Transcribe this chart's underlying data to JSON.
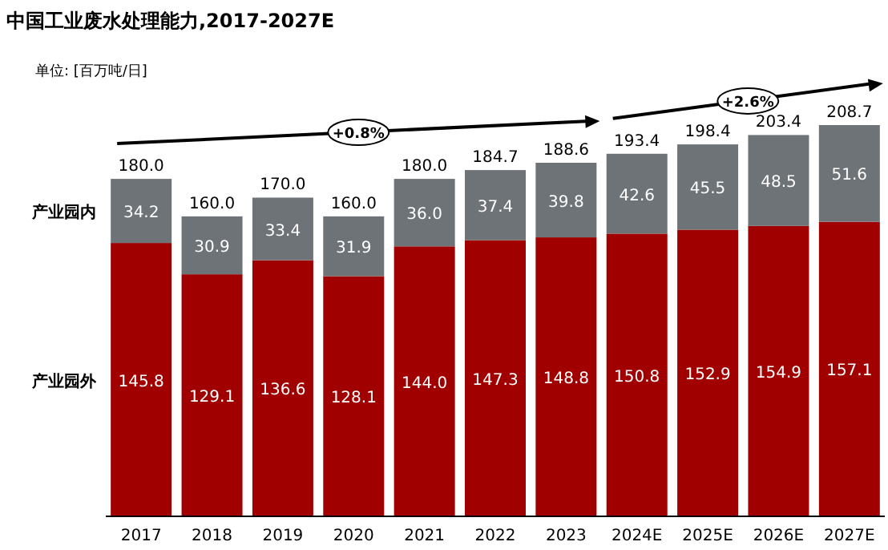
{
  "chart_data": {
    "type": "bar",
    "title": "中国工业废水处理能力,2017-2027E",
    "stacked": true,
    "categories": [
      "2017",
      "2018",
      "2019",
      "2020",
      "2021",
      "2022",
      "2023",
      "2024E",
      "2025E",
      "2026E",
      "2027E"
    ],
    "series": [
      {
        "name": "产业园外",
        "color": "#a00000",
        "values": [
          145.8,
          129.1,
          136.6,
          128.1,
          144.0,
          147.3,
          148.8,
          150.8,
          152.9,
          154.9,
          157.1
        ],
        "value_labels": [
          "145.8",
          "129.1",
          "136.6",
          "128.1",
          "144.0",
          "147.3",
          "148.8",
          "150.8",
          "152.9",
          "154.9",
          "157.1"
        ]
      },
      {
        "name": "产业园内",
        "color": "#6e7378",
        "values": [
          34.2,
          30.9,
          33.4,
          31.9,
          36.0,
          37.4,
          39.8,
          42.6,
          45.5,
          48.5,
          51.6
        ],
        "value_labels": [
          "34.2",
          "30.9",
          "33.4",
          "31.9",
          "36.0",
          "37.4",
          "39.8",
          "42.6",
          "45.5",
          "48.5",
          "51.6"
        ]
      }
    ],
    "totals": [
      "180.0",
      "160.0",
      "170.0",
      "160.0",
      "180.0",
      "184.7",
      "188.6",
      "193.4",
      "198.4",
      "203.4",
      "208.7"
    ],
    "annotations": [
      "单位: [百万吨/日]",
      "+0.8%",
      "+2.6%"
    ]
  }
}
